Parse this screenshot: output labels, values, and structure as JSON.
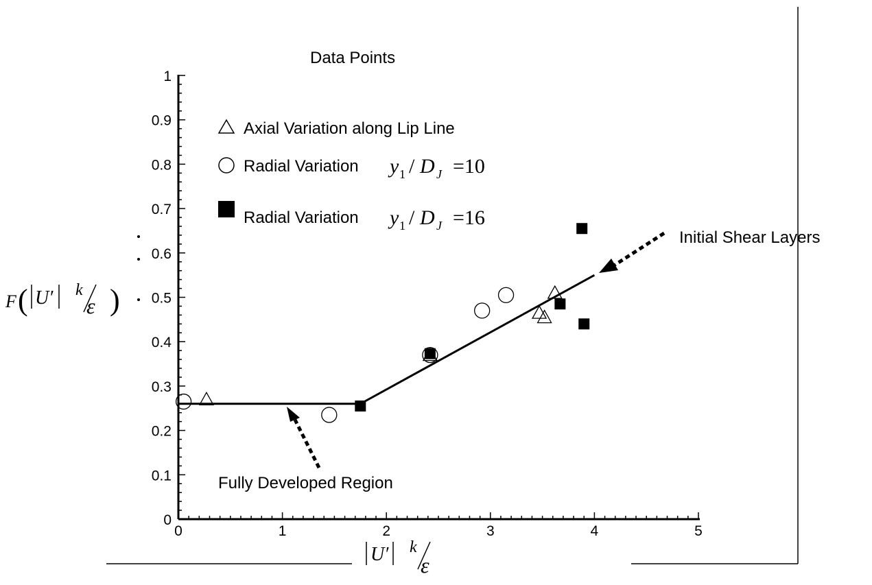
{
  "chart_data": {
    "type": "scatter",
    "title": "",
    "xlabel": "|U′| k⁄ε",
    "ylabel": "F(|U′| k⁄ε)",
    "xlim": [
      0,
      5
    ],
    "ylim": [
      0,
      1
    ],
    "x_ticks": [
      "0",
      "1",
      "2",
      "3",
      "4",
      "5"
    ],
    "y_ticks": [
      "0",
      "0.1",
      "0.2",
      "0.3",
      "0.4",
      "0.5",
      "0.6",
      "0.7",
      "0.8",
      "0.9",
      "1"
    ],
    "grid": false,
    "legend": {
      "title": "Data Points",
      "placement": "top-left",
      "entries": [
        {
          "marker": "triangle-open",
          "label": "Axial Variation along Lip Line"
        },
        {
          "marker": "circle-open",
          "label": "Radial Variation",
          "math": "y1 / DJ = 10"
        },
        {
          "marker": "square-filled",
          "label": "Radial Variation",
          "math": "y1 / DJ = 16"
        }
      ]
    },
    "series": [
      {
        "marker": "triangle-open",
        "points": [
          [
            0.27,
            0.27
          ],
          [
            2.42,
            0.37
          ],
          [
            3.47,
            0.465
          ],
          [
            3.52,
            0.455
          ],
          [
            3.62,
            0.51
          ]
        ]
      },
      {
        "marker": "circle-open",
        "points": [
          [
            0.05,
            0.265
          ],
          [
            1.45,
            0.235
          ],
          [
            2.42,
            0.37
          ],
          [
            2.92,
            0.47
          ],
          [
            3.15,
            0.505
          ]
        ]
      },
      {
        "marker": "square-filled",
        "points": [
          [
            1.75,
            0.255
          ],
          [
            2.42,
            0.373
          ],
          [
            3.67,
            0.485
          ],
          [
            3.88,
            0.655
          ],
          [
            3.9,
            0.44
          ]
        ]
      }
    ],
    "fit_line": [
      [
        0,
        0.26
      ],
      [
        1.75,
        0.26
      ],
      [
        4.0,
        0.55
      ]
    ],
    "annotations": [
      {
        "name": "initial-shear",
        "text": "Initial Shear Layers"
      },
      {
        "name": "fully-developed",
        "text": "Fully Developed Region"
      }
    ]
  }
}
